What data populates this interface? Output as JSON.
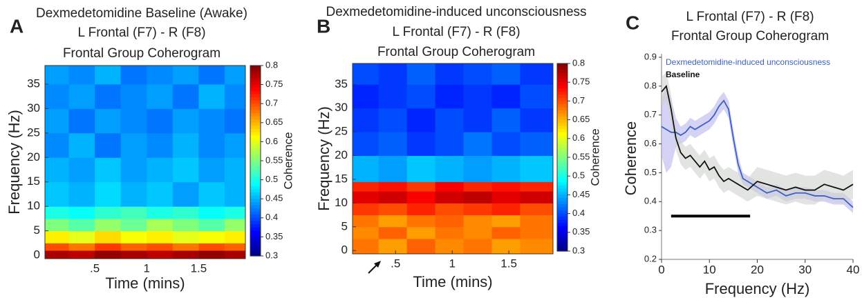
{
  "chart_data": [
    {
      "type": "heatmap",
      "panel": "A",
      "title": [
        "Dexmedetomidine Baseline (Awake)",
        "L Frontal (F7) -  R (F8)",
        "Frontal Group Coherogram"
      ],
      "xlabel": "Time (mins)",
      "ylabel": "Frequency (Hz)",
      "xlim": [
        0.02,
        1.95
      ],
      "ylim": [
        -0.7,
        38.8
      ],
      "xticks": [
        {
          "value": 0.5,
          "label": ".5"
        },
        1,
        1.5
      ],
      "yticks": [
        0,
        5,
        10,
        15,
        20,
        25,
        30,
        35
      ],
      "xbins": [
        0.02,
        0.25,
        0.5,
        0.75,
        1,
        1.25,
        1.5,
        1.75,
        1.95
      ],
      "ybins": [
        -0.7,
        1,
        2.5,
        5,
        7.5,
        10,
        15,
        20,
        25,
        30,
        35,
        38.8
      ],
      "z": [
        [
          0.78,
          0.77,
          0.79,
          0.78,
          0.77,
          0.78,
          0.79,
          0.78
        ],
        [
          0.7,
          0.68,
          0.71,
          0.69,
          0.7,
          0.68,
          0.7,
          0.69
        ],
        [
          0.62,
          0.6,
          0.63,
          0.61,
          0.62,
          0.6,
          0.61,
          0.62
        ],
        [
          0.55,
          0.53,
          0.56,
          0.54,
          0.57,
          0.55,
          0.53,
          0.56
        ],
        [
          0.5,
          0.49,
          0.51,
          0.52,
          0.5,
          0.51,
          0.49,
          0.5
        ],
        [
          0.46,
          0.45,
          0.47,
          0.45,
          0.46,
          0.44,
          0.46,
          0.45
        ],
        [
          0.45,
          0.44,
          0.46,
          0.44,
          0.45,
          0.46,
          0.44,
          0.45
        ],
        [
          0.43,
          0.45,
          0.42,
          0.44,
          0.43,
          0.45,
          0.43,
          0.44
        ],
        [
          0.44,
          0.42,
          0.44,
          0.43,
          0.42,
          0.44,
          0.43,
          0.42
        ],
        [
          0.43,
          0.44,
          0.42,
          0.43,
          0.44,
          0.42,
          0.45,
          0.43
        ],
        [
          0.44,
          0.43,
          0.45,
          0.42,
          0.43,
          0.44,
          0.42,
          0.44
        ]
      ],
      "colormap": "jet",
      "clim": [
        0.3,
        0.8
      ],
      "cticks": [
        0.3,
        0.35,
        0.4,
        0.45,
        0.5,
        0.55,
        0.6,
        0.65,
        0.7,
        0.75,
        0.8
      ],
      "clabel": "Coherence"
    },
    {
      "type": "heatmap",
      "panel": "B",
      "title": [
        "Dexmedetomidine-induced unconsciousness",
        "L Frontal (F7) -  R (F8)",
        "Frontal Group Coherogram"
      ],
      "xlabel": "Time (mins)",
      "ylabel": "Frequency (Hz)",
      "xlim": [
        0.12,
        1.89
      ],
      "ylim": [
        -0.7,
        39.4
      ],
      "xticks": [
        {
          "value": 0.5,
          "label": ".5"
        },
        1,
        1.5
      ],
      "yticks": [
        0,
        5,
        10,
        15,
        20,
        25,
        30,
        35
      ],
      "xbins": [
        0.12,
        0.35,
        0.6,
        0.85,
        1.1,
        1.35,
        1.6,
        1.89
      ],
      "ybins": [
        -0.7,
        2.5,
        5,
        7.5,
        10,
        12.5,
        14.5,
        20,
        25,
        30,
        35,
        39.4
      ],
      "z": [
        [
          0.68,
          0.66,
          0.69,
          0.67,
          0.68,
          0.66,
          0.67
        ],
        [
          0.67,
          0.69,
          0.66,
          0.68,
          0.67,
          0.69,
          0.68
        ],
        [
          0.68,
          0.66,
          0.68,
          0.69,
          0.67,
          0.66,
          0.68
        ],
        [
          0.71,
          0.7,
          0.72,
          0.7,
          0.71,
          0.72,
          0.7
        ],
        [
          0.75,
          0.76,
          0.74,
          0.76,
          0.77,
          0.75,
          0.76
        ],
        [
          0.72,
          0.73,
          0.71,
          0.74,
          0.72,
          0.73,
          0.72
        ],
        [
          0.45,
          0.44,
          0.46,
          0.45,
          0.44,
          0.45,
          0.46
        ],
        [
          0.4,
          0.41,
          0.39,
          0.4,
          0.42,
          0.4,
          0.41
        ],
        [
          0.39,
          0.4,
          0.38,
          0.4,
          0.39,
          0.41,
          0.39
        ],
        [
          0.38,
          0.39,
          0.4,
          0.38,
          0.39,
          0.38,
          0.4
        ],
        [
          0.4,
          0.39,
          0.41,
          0.39,
          0.4,
          0.41,
          0.39
        ]
      ],
      "colormap": "jet",
      "clim": [
        0.3,
        0.8
      ],
      "cticks": [
        0.3,
        0.35,
        0.4,
        0.45,
        0.5,
        0.55,
        0.6,
        0.65,
        0.7,
        0.75,
        0.8
      ],
      "clabel": "Coherence"
    },
    {
      "type": "line",
      "panel": "C",
      "title": [
        "L Frontal (F7) -  R (F8)",
        "Frontal Group Coherogram"
      ],
      "xlabel": "Frequency (Hz)",
      "ylabel": "Coherence",
      "xlim": [
        0,
        40
      ],
      "ylim": [
        0.2,
        0.9
      ],
      "xticks": [
        0,
        10,
        20,
        30,
        40
      ],
      "yticks": [
        0.2,
        0.3,
        0.4,
        0.5,
        0.6,
        0.7,
        0.8,
        0.9
      ],
      "x": [
        0,
        1,
        2,
        3,
        4,
        5,
        6,
        7,
        8,
        9,
        10,
        11,
        12,
        13,
        14,
        15,
        16,
        17,
        18,
        20,
        22,
        24,
        26,
        28,
        30,
        32,
        34,
        36,
        38,
        40
      ],
      "series": [
        {
          "name": "Dexmedetomidine-induced unconsciousness",
          "color": "#3d5fc4",
          "band_color": "#b9b6ee",
          "values": [
            0.66,
            0.65,
            0.64,
            0.64,
            0.63,
            0.64,
            0.66,
            0.65,
            0.66,
            0.67,
            0.68,
            0.7,
            0.73,
            0.75,
            0.72,
            0.62,
            0.53,
            0.48,
            0.47,
            0.45,
            0.43,
            0.44,
            0.42,
            0.43,
            0.43,
            0.42,
            0.42,
            0.41,
            0.41,
            0.38
          ],
          "band": [
            0.1,
            0.15,
            0.12,
            0.05,
            0.03,
            0.03,
            0.03,
            0.03,
            0.03,
            0.03,
            0.03,
            0.03,
            0.03,
            0.03,
            0.03,
            0.03,
            0.03,
            0.02,
            0.02,
            0.02,
            0.02,
            0.02,
            0.02,
            0.02,
            0.02,
            0.02,
            0.02,
            0.02,
            0.02,
            0.02
          ]
        },
        {
          "name": "Baseline",
          "color": "#111111",
          "band_color": "#cfd2cf",
          "values": [
            0.78,
            0.8,
            0.72,
            0.62,
            0.57,
            0.55,
            0.56,
            0.54,
            0.52,
            0.54,
            0.51,
            0.52,
            0.49,
            0.47,
            0.48,
            0.47,
            0.46,
            0.45,
            0.44,
            0.47,
            0.46,
            0.45,
            0.44,
            0.45,
            0.44,
            0.44,
            0.46,
            0.45,
            0.44,
            0.46
          ],
          "band": [
            0.05,
            0.05,
            0.05,
            0.04,
            0.04,
            0.04,
            0.04,
            0.04,
            0.04,
            0.04,
            0.04,
            0.04,
            0.04,
            0.04,
            0.04,
            0.04,
            0.04,
            0.04,
            0.04,
            0.05,
            0.05,
            0.05,
            0.05,
            0.05,
            0.05,
            0.05,
            0.05,
            0.05,
            0.05,
            0.05
          ]
        }
      ],
      "significance": {
        "x": [
          2,
          18.5
        ],
        "y": 0.35
      }
    }
  ]
}
